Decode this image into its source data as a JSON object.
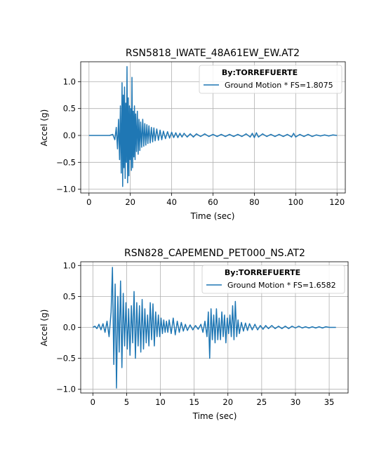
{
  "figure": {
    "line_color": "#1f77b4",
    "grid_color": "#b0b0b0"
  },
  "chart_data": [
    {
      "type": "line",
      "title": "RSN5818_IWATE_48A61EW_EW.AT2",
      "xlabel": "Time (sec)",
      "ylabel": "Accel (g)",
      "xlim": [
        -4,
        124
      ],
      "ylim": [
        -1.07,
        1.37
      ],
      "xticks": [
        0,
        20,
        40,
        60,
        80,
        100,
        120
      ],
      "xtick_labels": [
        "0",
        "20",
        "40",
        "60",
        "80",
        "100",
        "120"
      ],
      "yticks": [
        1.0,
        0.5,
        0.0,
        -0.5,
        -1.0
      ],
      "ytick_labels": [
        "1.0",
        "0.5",
        "0.0",
        "−0.5",
        "−1.0"
      ],
      "grid": true,
      "legend": {
        "placement": "top-right",
        "title": "By:TORREFUERTE",
        "entries": [
          "Ground Motion * FS=1.8075"
        ]
      },
      "series": [
        {
          "name": "Ground Motion * FS=1.8075",
          "x": [
            0,
            5,
            10,
            11.5,
            12.5,
            13.2,
            13.8,
            14.3,
            14.8,
            15.2,
            15.6,
            16.0,
            16.3,
            16.6,
            16.9,
            17.2,
            17.5,
            17.8,
            18.1,
            18.4,
            18.7,
            19.0,
            19.3,
            19.6,
            19.9,
            20.2,
            20.5,
            20.8,
            21.1,
            21.4,
            21.7,
            22.0,
            22.3,
            22.6,
            23.0,
            23.4,
            23.8,
            24.2,
            24.6,
            25.0,
            25.5,
            26.0,
            26.5,
            27.0,
            27.5,
            28.0,
            28.5,
            29.0,
            29.6,
            30.2,
            30.8,
            31.4,
            32.0,
            32.8,
            33.6,
            34.4,
            35.2,
            36.0,
            37.0,
            38.0,
            39.0,
            40.0,
            41.0,
            42.0,
            43.0,
            44.0,
            45.0,
            46.0,
            47.5,
            49.0,
            50.5,
            52.0,
            54.0,
            56.0,
            58.0,
            60.0,
            62.0,
            64.0,
            66.0,
            68.0,
            70.0,
            72.0,
            74.0,
            76.0,
            78.0,
            79.0,
            80.0,
            81.0,
            82.0,
            84.0,
            86.0,
            88.0,
            90.0,
            92.0,
            94.0,
            96.0,
            98.0,
            99.0,
            100.0,
            102.0,
            104.0,
            106.0,
            108.0,
            110.0,
            112.0,
            114.0,
            116.0,
            118.0,
            120.0
          ],
          "values": [
            0.0,
            0.0,
            0.0,
            0.02,
            -0.08,
            0.15,
            -0.25,
            0.3,
            -0.45,
            0.55,
            -0.7,
            0.98,
            -0.95,
            0.75,
            -0.6,
            0.9,
            -0.8,
            0.6,
            -0.5,
            1.28,
            -0.88,
            0.7,
            -0.75,
            0.55,
            -0.45,
            0.5,
            -0.65,
            1.08,
            -0.6,
            0.45,
            -0.4,
            0.55,
            -0.45,
            0.4,
            -0.3,
            0.45,
            -0.35,
            0.3,
            -0.28,
            0.25,
            -0.22,
            0.3,
            -0.2,
            0.22,
            -0.18,
            0.2,
            -0.15,
            0.18,
            -0.14,
            0.15,
            -0.12,
            0.14,
            -0.1,
            0.12,
            -0.09,
            0.1,
            -0.08,
            0.08,
            -0.06,
            0.07,
            -0.05,
            0.06,
            -0.04,
            0.05,
            -0.04,
            0.04,
            -0.03,
            0.04,
            -0.03,
            0.03,
            -0.03,
            0.03,
            -0.02,
            0.03,
            -0.02,
            0.02,
            -0.02,
            0.02,
            -0.02,
            0.02,
            -0.02,
            0.02,
            -0.02,
            0.03,
            -0.03,
            0.04,
            -0.04,
            0.05,
            -0.03,
            0.03,
            -0.02,
            0.02,
            -0.02,
            0.02,
            -0.02,
            0.02,
            -0.03,
            0.04,
            -0.03,
            0.02,
            -0.02,
            0.02,
            -0.02,
            0.01,
            -0.01,
            0.01,
            -0.01,
            0.01,
            0.0
          ]
        }
      ]
    },
    {
      "type": "line",
      "title": "RSN828_CAPEMEND_PET000_NS.AT2",
      "xlabel": "Time (sec)",
      "ylabel": "Accel (g)",
      "xlim": [
        -1.8,
        37.8
      ],
      "ylim": [
        -1.06,
        1.06
      ],
      "xticks": [
        0,
        5,
        10,
        15,
        20,
        25,
        30,
        35
      ],
      "xtick_labels": [
        "0",
        "5",
        "10",
        "15",
        "20",
        "25",
        "30",
        "35"
      ],
      "yticks": [
        1.0,
        0.5,
        0.0,
        -0.5,
        -1.0
      ],
      "ytick_labels": [
        "1.0",
        "0.5",
        "0.0",
        "−0.5",
        "−1.0"
      ],
      "grid": true,
      "legend": {
        "placement": "top-right",
        "title": "By:TORREFUERTE",
        "entries": [
          "Ground Motion * FS=1.6582"
        ]
      },
      "series": [
        {
          "name": "Ground Motion * FS=1.6582",
          "x": [
            0,
            0.3,
            0.6,
            0.9,
            1.2,
            1.5,
            1.8,
            2.1,
            2.4,
            2.7,
            2.9,
            3.1,
            3.3,
            3.5,
            3.7,
            3.9,
            4.1,
            4.3,
            4.5,
            4.7,
            4.9,
            5.1,
            5.3,
            5.5,
            5.7,
            5.9,
            6.1,
            6.3,
            6.5,
            6.7,
            6.9,
            7.1,
            7.3,
            7.5,
            7.7,
            7.9,
            8.1,
            8.3,
            8.5,
            8.7,
            8.9,
            9.1,
            9.3,
            9.5,
            9.7,
            9.9,
            10.1,
            10.3,
            10.5,
            10.7,
            10.9,
            11.1,
            11.3,
            11.6,
            11.9,
            12.2,
            12.5,
            12.8,
            13.1,
            13.4,
            13.7,
            14.0,
            14.4,
            14.8,
            15.2,
            15.6,
            16.0,
            16.3,
            16.6,
            16.9,
            17.1,
            17.3,
            17.5,
            17.7,
            17.9,
            18.1,
            18.3,
            18.5,
            18.7,
            18.9,
            19.1,
            19.3,
            19.5,
            19.7,
            19.9,
            20.1,
            20.3,
            20.5,
            20.7,
            20.9,
            21.1,
            21.3,
            21.5,
            21.7,
            22.0,
            22.3,
            22.6,
            22.9,
            23.2,
            23.6,
            24.0,
            24.4,
            24.8,
            25.2,
            25.6,
            26.0,
            26.5,
            27.0,
            27.5,
            28.0,
            28.5,
            29.0,
            29.5,
            30.0,
            30.5,
            31.0,
            31.5,
            32.0,
            32.5,
            33.0,
            33.5,
            34.0,
            34.5,
            35.0,
            35.5,
            36.0
          ],
          "values": [
            0.0,
            0.02,
            -0.02,
            0.05,
            -0.04,
            0.06,
            -0.08,
            0.1,
            -0.15,
            0.25,
            0.97,
            -0.6,
            0.7,
            -0.98,
            0.5,
            -0.4,
            0.75,
            -0.65,
            0.55,
            -0.3,
            0.4,
            -0.35,
            0.3,
            -0.45,
            0.35,
            -0.25,
            0.58,
            -0.5,
            0.4,
            -0.3,
            0.35,
            -0.4,
            0.45,
            -0.35,
            0.3,
            -0.25,
            0.2,
            -0.3,
            0.4,
            -0.2,
            0.38,
            -0.3,
            0.25,
            -0.15,
            0.2,
            -0.15,
            0.15,
            -0.1,
            0.12,
            -0.08,
            0.1,
            -0.08,
            0.12,
            -0.1,
            0.15,
            -0.12,
            0.1,
            -0.08,
            0.08,
            -0.06,
            0.05,
            -0.05,
            0.04,
            -0.04,
            0.03,
            -0.03,
            0.05,
            -0.08,
            0.1,
            -0.15,
            0.25,
            -0.5,
            0.3,
            -0.2,
            0.2,
            -0.25,
            0.3,
            -0.2,
            0.15,
            -0.2,
            0.25,
            -0.15,
            0.2,
            -0.25,
            0.15,
            -0.1,
            0.2,
            -0.15,
            0.35,
            -0.2,
            0.42,
            -0.15,
            0.12,
            -0.1,
            0.08,
            -0.06,
            0.07,
            -0.05,
            0.06,
            -0.04,
            0.05,
            -0.04,
            0.03,
            -0.03,
            0.03,
            -0.02,
            0.03,
            -0.02,
            0.02,
            -0.02,
            0.02,
            -0.02,
            0.02,
            -0.01,
            0.02,
            -0.01,
            0.01,
            -0.01,
            0.01,
            -0.01,
            0.01,
            -0.01,
            0.01,
            0.0,
            0.0,
            0.0
          ]
        }
      ]
    }
  ]
}
